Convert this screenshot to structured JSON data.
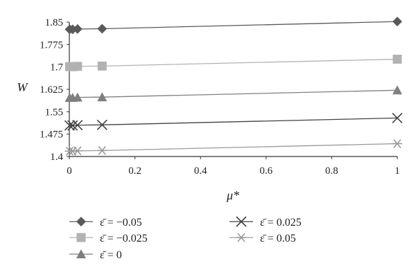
{
  "chart_data": {
    "type": "line",
    "xlabel": "μ*",
    "ylabel": "W",
    "xlim": [
      0,
      1
    ],
    "ylim": [
      1.4,
      1.85
    ],
    "xticks": [
      "0",
      "0.2",
      "0.4",
      "0.6",
      "0.8",
      "1"
    ],
    "yticks": [
      "1.4",
      "1.475",
      "1.55",
      "1.625",
      "1.7",
      "1.775",
      "1.85"
    ],
    "grid": false,
    "legend_position": "bottom",
    "series": [
      {
        "name": "ε̄ = −0.05",
        "marker": "diamond",
        "color": "#595959",
        "x": [
          0.001,
          0.01,
          0.025,
          0.1,
          1
        ],
        "y": [
          1.826,
          1.826,
          1.827,
          1.828,
          1.852
        ]
      },
      {
        "name": "ε̄ = −0.025",
        "marker": "square",
        "color": "#b2b2b2",
        "x": [
          0.001,
          0.01,
          0.025,
          0.1,
          1
        ],
        "y": [
          1.701,
          1.701,
          1.702,
          1.703,
          1.726
        ]
      },
      {
        "name": "ε̄ = 0",
        "marker": "triangle",
        "color": "#7f7f7f",
        "x": [
          0.001,
          0.01,
          0.025,
          0.1,
          1
        ],
        "y": [
          1.597,
          1.597,
          1.598,
          1.599,
          1.622
        ]
      },
      {
        "name": "ε̄ = 0.025",
        "marker": "x",
        "color": "#404040",
        "x": [
          0.001,
          0.01,
          0.025,
          0.1,
          1
        ],
        "y": [
          1.504,
          1.504,
          1.505,
          1.506,
          1.529
        ]
      },
      {
        "name": "ε̄ = 0.05",
        "marker": "star",
        "color": "#9a9a9a",
        "x": [
          0.001,
          0.01,
          0.025,
          0.1,
          1
        ],
        "y": [
          1.418,
          1.418,
          1.419,
          1.42,
          1.443
        ]
      }
    ]
  }
}
